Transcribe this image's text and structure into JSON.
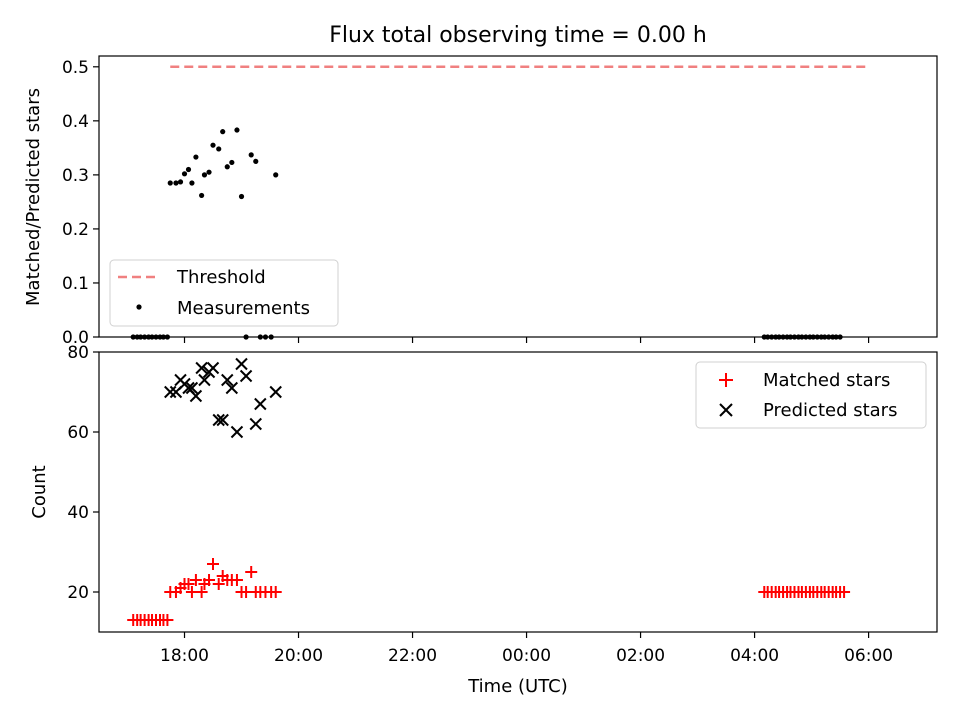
{
  "title": "Flux total observing time = 0.00 h",
  "chart_data": [
    {
      "type": "scatter",
      "ylabel": "Matched/Predicted stars",
      "xlabel": "",
      "ylim": [
        0,
        0.52
      ],
      "yticks": [
        0.0,
        0.1,
        0.2,
        0.3,
        0.4,
        0.5
      ],
      "ytick_labels": [
        "0.0",
        "0.1",
        "0.2",
        "0.3",
        "0.4",
        "0.5"
      ],
      "grid": false,
      "legend_position": "lower-left",
      "threshold": {
        "name": "Threshold",
        "value": 0.5,
        "x_start": 17.75,
        "x_end": 30.0,
        "color": "#f08080"
      },
      "series": [
        {
          "name": "Measurements",
          "color": "#000000",
          "marker": "dot",
          "x": [
            17.1,
            17.17,
            17.23,
            17.3,
            17.37,
            17.43,
            17.5,
            17.57,
            17.63,
            17.7,
            17.75,
            17.85,
            17.93,
            18.0,
            18.07,
            18.13,
            18.2,
            18.3,
            18.35,
            18.43,
            18.5,
            18.6,
            18.67,
            18.75,
            18.83,
            18.92,
            19.0,
            19.08,
            19.17,
            19.25,
            19.33,
            19.42,
            19.52,
            19.6,
            28.17,
            28.23,
            28.3,
            28.37,
            28.43,
            28.5,
            28.57,
            28.63,
            28.7,
            28.77,
            28.83,
            28.9,
            28.97,
            29.03,
            29.1,
            29.17,
            29.23,
            29.3,
            29.37,
            29.43,
            29.5
          ],
          "y": [
            0,
            0,
            0,
            0,
            0,
            0,
            0,
            0,
            0,
            0,
            0.285,
            0.285,
            0.287,
            0.302,
            0.31,
            0.285,
            0.333,
            0.262,
            0.3,
            0.305,
            0.355,
            0.348,
            0.38,
            0.315,
            0.323,
            0.383,
            0.26,
            0,
            0.337,
            0.325,
            0,
            0,
            0,
            0.3,
            0,
            0,
            0,
            0,
            0,
            0,
            0,
            0,
            0,
            0,
            0,
            0,
            0,
            0,
            0,
            0,
            0,
            0,
            0,
            0,
            0
          ]
        }
      ]
    },
    {
      "type": "scatter",
      "ylabel": "Count",
      "xlabel": "Time (UTC)",
      "ylim": [
        10,
        80
      ],
      "yticks": [
        20,
        40,
        60,
        80
      ],
      "ytick_labels": [
        "20",
        "40",
        "60",
        "80"
      ],
      "xlim": [
        16.5,
        31.2
      ],
      "xticks": [
        18,
        20,
        22,
        24,
        26,
        28,
        30
      ],
      "xtick_labels": [
        "18:00",
        "20:00",
        "22:00",
        "00:00",
        "02:00",
        "04:00",
        "06:00"
      ],
      "grid": false,
      "legend_position": "top-right",
      "series": [
        {
          "name": "Matched stars",
          "color": "#ff0000",
          "marker": "plus",
          "x": [
            17.1,
            17.17,
            17.23,
            17.3,
            17.37,
            17.43,
            17.5,
            17.57,
            17.63,
            17.7,
            17.75,
            17.85,
            17.93,
            18.0,
            18.07,
            18.13,
            18.2,
            18.3,
            18.35,
            18.43,
            18.5,
            18.6,
            18.67,
            18.75,
            18.83,
            18.92,
            19.0,
            19.08,
            19.17,
            19.25,
            19.33,
            19.42,
            19.52,
            19.6,
            28.17,
            28.23,
            28.3,
            28.37,
            28.43,
            28.5,
            28.57,
            28.63,
            28.7,
            28.77,
            28.83,
            28.9,
            28.97,
            29.03,
            29.1,
            29.17,
            29.23,
            29.3,
            29.37,
            29.43,
            29.5,
            29.57
          ],
          "y": [
            13,
            13,
            13,
            13,
            13,
            13,
            13,
            13,
            13,
            13,
            20,
            20,
            21,
            22,
            22,
            20,
            23,
            20,
            22,
            23,
            27,
            22,
            24,
            23,
            23,
            23,
            20,
            20,
            25,
            20,
            20,
            20,
            20,
            20,
            20,
            20,
            20,
            20,
            20,
            20,
            20,
            20,
            20,
            20,
            20,
            20,
            20,
            20,
            20,
            20,
            20,
            20,
            20,
            20,
            20,
            20
          ]
        },
        {
          "name": "Predicted stars",
          "color": "#000000",
          "marker": "x",
          "x": [
            17.75,
            17.85,
            17.93,
            18.0,
            18.07,
            18.13,
            18.2,
            18.3,
            18.35,
            18.43,
            18.5,
            18.6,
            18.67,
            18.75,
            18.83,
            18.92,
            19.0,
            19.08,
            19.25,
            19.33,
            19.6
          ],
          "y": [
            70,
            70,
            73,
            72,
            71,
            71,
            69,
            76,
            73,
            75,
            76,
            63,
            63,
            73,
            71,
            60,
            77,
            74,
            62,
            67,
            70
          ]
        }
      ]
    }
  ]
}
